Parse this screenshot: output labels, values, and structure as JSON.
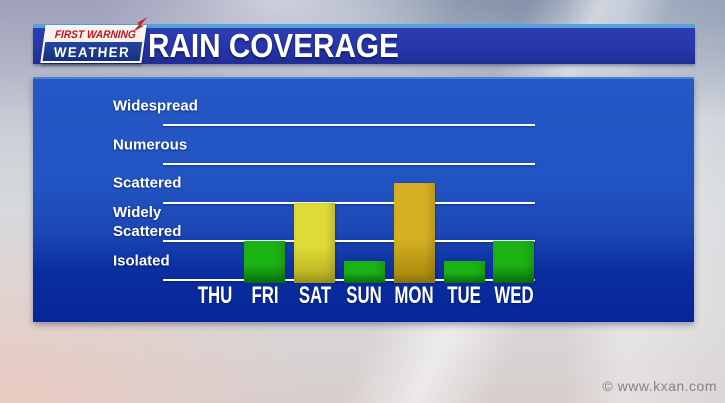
{
  "logo": {
    "line1": "FIRST WARNING",
    "line2": "WEATHER"
  },
  "header": {
    "title": "RAIN COVERAGE"
  },
  "watermark": {
    "text": "© www.kxan.com"
  },
  "chart_data": {
    "type": "bar",
    "title": "RAIN COVERAGE",
    "categories": [
      "THU",
      "FRI",
      "SAT",
      "SUN",
      "MON",
      "TUE",
      "WED"
    ],
    "values": [
      0,
      1.0,
      2.0,
      0.5,
      2.5,
      0.5,
      1.0
    ],
    "value_units": "coverage level: 1 = Widely Scattered line, 2 = Scattered line, 3 = Numerous line, 4 = Widespread line",
    "levels": [
      "Isolated",
      "Widely Scattered",
      "Scattered",
      "Numerous",
      "Widespread"
    ],
    "ylim": [
      0,
      5
    ],
    "grid": true,
    "legend": "none",
    "bar_color_keys": [
      null,
      "green",
      "yellow",
      "green",
      "gold",
      "green",
      "green"
    ],
    "palette": {
      "green": {
        "top": "#1cb315",
        "bottom": "#0a7c0e"
      },
      "yellow": {
        "top": "#e0da38",
        "bottom": "#b2a91d"
      },
      "gold": {
        "top": "#d6b022",
        "bottom": "#a3850c"
      }
    }
  },
  "colors": {
    "banner_blue": "#2736aa",
    "banner_top_stripe": "#57a0da",
    "panel_blue_top": "#2558c6",
    "panel_blue_bottom": "#062699",
    "gridline_white": "#ffffff",
    "logo_red": "#c0141e",
    "logo_blue": "#1c3a96",
    "text_white": "#ffffff",
    "watermark_gray": "#7e848c"
  }
}
